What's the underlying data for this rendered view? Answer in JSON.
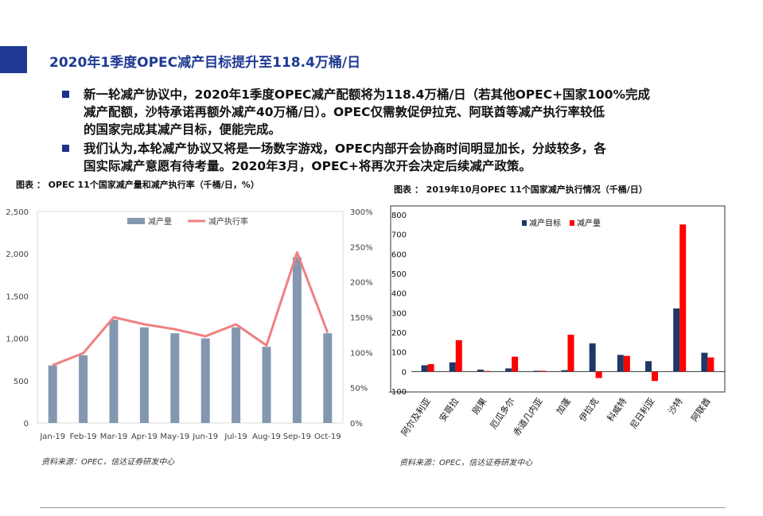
{
  "page": {
    "title": "2020年1季度OPEC减产目标提升至118.4万桶/日",
    "bullets": [
      [
        "新一轮减产协议中，2020年1季度OPEC减产配额将为118.4万桶/日（若其他OPEC+国家100%完成",
        "减产配额，沙特承诺再额外减产40万桶/日）。OPEC仅需敦促伊拉克、阿联酋等减产执行率较低",
        "的国家完成其减产目标，便能完成。"
      ],
      [
        "我们认为,本轮减产协议又将是一场数字游戏，OPEC内部开会协商时间明显加长，分歧较多，各",
        "国实际减产意愿有待考量。2020年3月，OPEC+将再次开会决定后续减产政策。"
      ]
    ],
    "colors": {
      "accent": "#1f3a93",
      "bullet": "#1f2f8c"
    }
  },
  "figure1": {
    "caption": "图表 ： OPEC 11个国家减产量和减产执行率（千桶/日，%）",
    "source": "资料来源：OPEC，信达证券研发中心"
  },
  "figure2": {
    "caption": "图表 ： 2019年10月OPEC 11个国家减产执行情况（千桶/日）",
    "source": "资料来源：OPEC，信达证券研发中心"
  },
  "chart_data": [
    {
      "type": "bar",
      "title": "",
      "categories": [
        "Jan-19",
        "Feb-19",
        "Mar-19",
        "Apr-19",
        "May-19",
        "Jun-19",
        "Jul-19",
        "Aug-19",
        "Sep-19",
        "Oct-19"
      ],
      "series": [
        {
          "name": "减产量",
          "type": "bar",
          "axis": "left",
          "color": "#8497b0",
          "values": [
            680,
            800,
            1220,
            1130,
            1060,
            1000,
            1130,
            900,
            1960,
            1060
          ]
        },
        {
          "name": "减产执行率",
          "type": "line",
          "axis": "right",
          "color": "#f08080",
          "values": [
            82,
            99,
            150,
            140,
            133,
            123,
            140,
            110,
            242,
            128
          ]
        }
      ],
      "ylim": [
        0,
        2500
      ],
      "y2lim": [
        0,
        300
      ],
      "yticks": [
        "0",
        "500",
        "1,000",
        "1,500",
        "2,000",
        "2,500"
      ],
      "y2ticks": [
        "0%",
        "50%",
        "100%",
        "150%",
        "200%",
        "250%",
        "300%"
      ],
      "legend": "top-center",
      "grid": false
    },
    {
      "type": "bar",
      "title": "",
      "categories": [
        "阿尔及利亚",
        "安哥拉",
        "刚果",
        "厄瓜多尔",
        "赤道几内亚",
        "加蓬",
        "伊拉克",
        "科威特",
        "尼日利亚",
        "沙特",
        "阿联酋"
      ],
      "series": [
        {
          "name": "减产目标",
          "color": "#1f3864",
          "values": [
            32,
            47,
            10,
            16,
            4,
            7,
            144,
            85,
            53,
            322,
            96
          ]
        },
        {
          "name": "减产量",
          "color": "#ff0000",
          "values": [
            38,
            160,
            3,
            76,
            4,
            188,
            -33,
            80,
            -48,
            750,
            72
          ]
        }
      ],
      "ylim": [
        -100,
        800
      ],
      "yticks": [
        "-100",
        "0",
        "100",
        "200",
        "300",
        "400",
        "500",
        "600",
        "700",
        "800"
      ],
      "legend": "top-center",
      "grid": false
    }
  ]
}
